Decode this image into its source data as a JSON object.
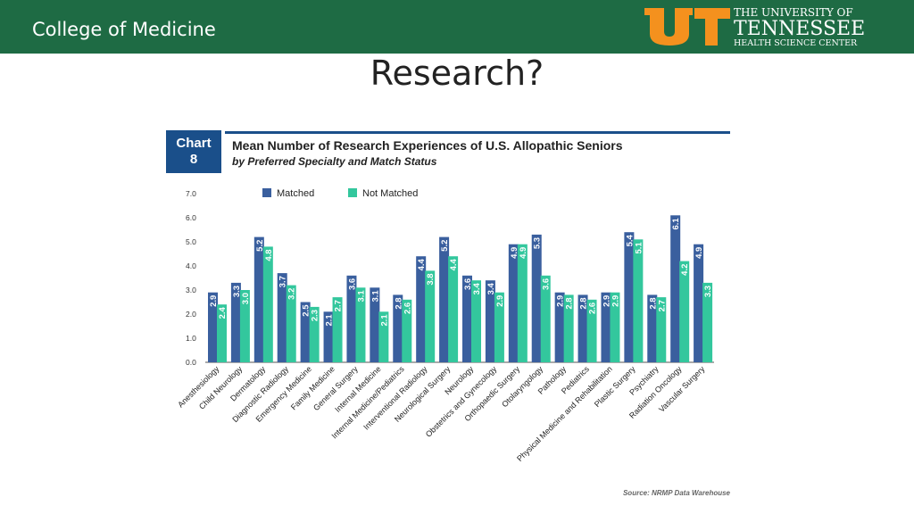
{
  "header": {
    "college": "College of Medicine",
    "logo": {
      "mark": "UT",
      "line1": "THE UNIVERSITY OF",
      "line2": "TENNESSEE",
      "line3": "HEALTH SCIENCE CENTER"
    }
  },
  "slide": {
    "title": "Research?"
  },
  "chart": {
    "number_label": "Chart",
    "number": "8",
    "title": "Mean Number of Research Experiences of U.S. Allopathic Seniors",
    "subtitle": "by Preferred Specialty and Match Status",
    "source": "Source: NRMP Data Warehouse"
  },
  "colors": {
    "header": "#1e6b44",
    "matched": "#3a5f9e",
    "not_matched": "#33c79d",
    "logo_orange": "#f4911e"
  },
  "chart_data": {
    "type": "bar",
    "categories": [
      "Anesthesiology",
      "Child Neurology",
      "Dermatology",
      "Diagnostic Radiology",
      "Emergency Medicine",
      "Family Medicine",
      "General Surgery",
      "Internal Medicine",
      "Internal Medicine/Pediatrics",
      "Interventional Radiology",
      "Neurological Surgery",
      "Neurology",
      "Obstetrics and Gynecology",
      "Orthopaedic Surgery",
      "Otolaryngology",
      "Pathology",
      "Pediatrics",
      "Physical Medicine and Rehabilitation",
      "Plastic Surgery",
      "Psychiatry",
      "Radiation Oncology",
      "Vascular Surgery"
    ],
    "series": [
      {
        "name": "Matched",
        "values": [
          2.9,
          3.3,
          5.2,
          3.7,
          2.5,
          2.1,
          3.6,
          3.1,
          2.8,
          4.4,
          5.2,
          3.6,
          3.4,
          4.9,
          5.3,
          2.9,
          2.8,
          2.9,
          5.4,
          2.8,
          6.1,
          4.9
        ],
        "labels": [
          "2.9",
          "3.3",
          "5.2",
          "3.7",
          "2.5",
          "2.1",
          "3.6",
          "3.1",
          "2.8",
          "4.4",
          "5.2",
          "3.6",
          "3.4",
          "4.9",
          "5.3",
          "2.9",
          "2.8",
          "2.9",
          "5.4",
          "2.8",
          "6.1",
          "4.9"
        ]
      },
      {
        "name": "Not Matched",
        "values": [
          2.4,
          3.0,
          4.8,
          3.2,
          2.3,
          2.7,
          3.1,
          2.1,
          2.6,
          3.8,
          4.4,
          3.4,
          2.9,
          4.9,
          3.6,
          2.8,
          2.6,
          2.9,
          5.1,
          2.7,
          4.2,
          3.3
        ],
        "labels": [
          "2.4",
          "3.0",
          "4.8",
          "3.2",
          "2.3",
          "2.7",
          "3.1",
          "2.1",
          "2.6",
          "3.8",
          "4.4",
          "3.4",
          "2.9",
          "4.9",
          "3.6",
          "2.8",
          "2.6",
          "2.9",
          "5.1",
          "2.7",
          "4.2",
          "3.3"
        ]
      }
    ],
    "y_ticks": [
      "0.0",
      "1.0",
      "2.0",
      "3.0",
      "4.0",
      "5.0",
      "6.0",
      "7.0"
    ],
    "ylim": [
      0,
      7
    ],
    "grid": false,
    "legend_position": "top"
  }
}
